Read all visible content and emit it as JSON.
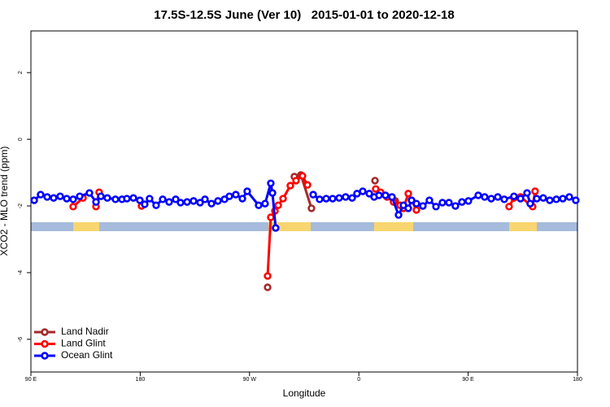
{
  "chart_data": {
    "type": "line",
    "title": "17.5S-12.5S June (Ver 10)   2015-01-01 to 2020-12-18",
    "x_label": "Longitude",
    "y_label": "XCO2 - MLO trend (ppm)",
    "xlim": [
      90,
      540
    ],
    "ylim": [
      -6.98,
      3.25
    ],
    "xticks": [
      {
        "value": 90,
        "label": "90 E"
      },
      180,
      {
        "value": 270,
        "label": "90 W"
      },
      {
        "value": 360,
        "label": "0"
      },
      {
        "value": 450,
        "label": "90 E"
      },
      {
        "value": 540,
        "label": "180"
      }
    ],
    "yticks": [
      2,
      0,
      -2,
      -4,
      -6
    ],
    "legend": "bottom-left",
    "series": [
      {
        "name": "Land Nadir",
        "color": "#a52a2a",
        "x": [
          284.9,
          null,
          306.9,
          312.3,
          321.0,
          null,
          373.3,
          null,
          390.0
        ],
        "values": [
          -4.44,
          null,
          -1.12,
          -1.07,
          -2.07,
          null,
          -1.24,
          null,
          -1.85
        ]
      },
      {
        "name": "Land Glint",
        "color": "#ff0000",
        "x": [
          124.8,
          132.9,
          null,
          143.6,
          146.2,
          null,
          181.1,
          null,
          284.9,
          287.5,
          290.9,
          293.6,
          297.6,
          303.6,
          308.3,
          313.6,
          317.7,
          null,
          373.9,
          377.9,
          383.3,
          388.6,
          394.0,
          396.7,
          400.7,
          407.4,
          null,
          483.7,
          487.7,
          493.1,
          503.1,
          505.1
        ],
        "values": [
          -2.02,
          -1.76,
          null,
          -2.02,
          -1.59,
          null,
          -2.0,
          null,
          -4.1,
          -2.34,
          -2.15,
          -1.98,
          -1.78,
          -1.39,
          -1.24,
          -1.1,
          -1.37,
          null,
          -1.49,
          -1.59,
          -1.73,
          -1.88,
          -1.98,
          -2.07,
          -1.63,
          -2.12,
          null,
          -2.02,
          -1.76,
          -1.73,
          -2.02,
          -1.56
        ]
      },
      {
        "name": "Ocean Glint",
        "color": "#0000ff",
        "x": [
          92.7,
          98.0,
          103.4,
          108.7,
          114.1,
          119.5,
          124.8,
          130.2,
          138.2,
          143.6,
          147.6,
          152.9,
          159.6,
          165.0,
          169.0,
          174.4,
          179.7,
          183.7,
          187.7,
          193.1,
          198.5,
          203.8,
          209.2,
          213.2,
          218.6,
          223.9,
          229.3,
          233.3,
          238.7,
          244.0,
          249.4,
          253.4,
          258.7,
          264.1,
          268.1,
          277.5,
          282.8,
          287.5,
          288.9,
          291.5,
          null,
          322.4,
          327.7,
          333.1,
          338.4,
          343.8,
          349.1,
          354.5,
          358.5,
          363.2,
          368.6,
          372.6,
          376.6,
          381.9,
          387.3,
          392.7,
          396.7,
          400.7,
          403.4,
          407.4,
          412.7,
          418.1,
          423.5,
          428.8,
          434.2,
          439.5,
          444.9,
          450.2,
          458.3,
          463.6,
          469.0,
          474.4,
          479.7,
          487.7,
          493.1,
          498.5,
          501.1,
          506.5,
          511.8,
          517.2,
          522.6,
          527.9,
          533.3,
          538.6
        ],
        "values": [
          -1.83,
          -1.66,
          -1.73,
          -1.76,
          -1.71,
          -1.78,
          -1.8,
          -1.71,
          -1.61,
          -1.88,
          -1.71,
          -1.76,
          -1.8,
          -1.8,
          -1.78,
          -1.76,
          -1.83,
          -1.95,
          -1.78,
          -1.98,
          -1.8,
          -1.88,
          -1.8,
          -1.9,
          -1.88,
          -1.85,
          -1.9,
          -1.8,
          -1.93,
          -1.85,
          -1.8,
          -1.71,
          -1.66,
          -1.78,
          -1.56,
          -1.98,
          -1.93,
          -1.32,
          -1.61,
          -2.66,
          null,
          -1.66,
          -1.8,
          -1.78,
          -1.78,
          -1.76,
          -1.73,
          -1.76,
          -1.63,
          -1.56,
          -1.63,
          -1.73,
          -1.68,
          -1.68,
          -1.73,
          -2.27,
          -1.98,
          -2.07,
          -1.83,
          -1.93,
          -2.0,
          -1.83,
          -2.02,
          -1.9,
          -1.9,
          -2.0,
          -1.88,
          -1.85,
          -1.68,
          -1.73,
          -1.78,
          -1.73,
          -1.8,
          -1.71,
          -1.78,
          -1.61,
          -1.93,
          -1.78,
          -1.76,
          -1.83,
          -1.8,
          -1.78,
          -1.73,
          -1.83
        ]
      }
    ]
  }
}
